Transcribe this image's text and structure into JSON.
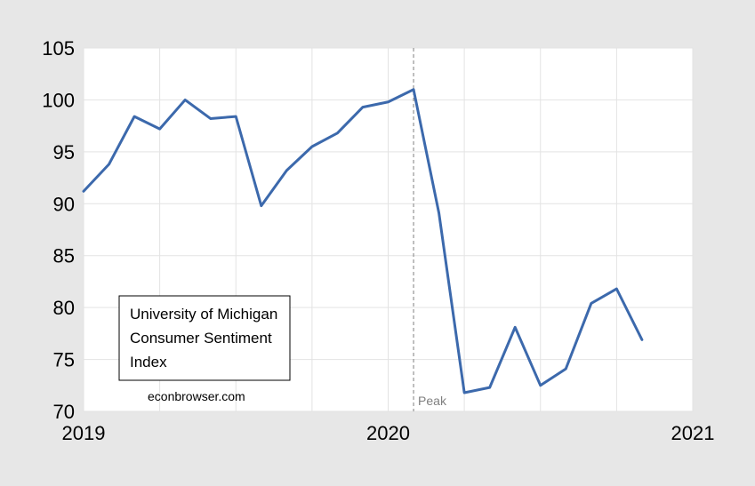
{
  "chart_data": {
    "type": "line",
    "title": "",
    "xlabel": "",
    "ylabel": "",
    "ylim": [
      70,
      105
    ],
    "xlim": [
      2019.0,
      2021.0
    ],
    "x_ticks": [
      "2019",
      "2020",
      "2021"
    ],
    "y_ticks": [
      "70",
      "75",
      "80",
      "85",
      "90",
      "95",
      "100",
      "105"
    ],
    "grid": true,
    "legend_text": [
      "University of Michigan",
      "Consumer Sentiment",
      "Index"
    ],
    "source_note": "econbrowser.com",
    "annotation": {
      "label": "Peak",
      "x": "2020-02"
    },
    "series": [
      {
        "color": "#3c69ac",
        "points": [
          {
            "x": "2019-01",
            "y": 91.2
          },
          {
            "x": "2019-02",
            "y": 93.8
          },
          {
            "x": "2019-03",
            "y": 98.4
          },
          {
            "x": "2019-04",
            "y": 97.2
          },
          {
            "x": "2019-05",
            "y": 100.0
          },
          {
            "x": "2019-06",
            "y": 98.2
          },
          {
            "x": "2019-07",
            "y": 98.4
          },
          {
            "x": "2019-08",
            "y": 89.8
          },
          {
            "x": "2019-09",
            "y": 93.2
          },
          {
            "x": "2019-10",
            "y": 95.5
          },
          {
            "x": "2019-11",
            "y": 96.8
          },
          {
            "x": "2019-12",
            "y": 99.3
          },
          {
            "x": "2020-01",
            "y": 99.8
          },
          {
            "x": "2020-02",
            "y": 101.0
          },
          {
            "x": "2020-03",
            "y": 89.1
          },
          {
            "x": "2020-04",
            "y": 71.8
          },
          {
            "x": "2020-05",
            "y": 72.3
          },
          {
            "x": "2020-06",
            "y": 78.1
          },
          {
            "x": "2020-07",
            "y": 72.5
          },
          {
            "x": "2020-08",
            "y": 74.1
          },
          {
            "x": "2020-09",
            "y": 80.4
          },
          {
            "x": "2020-10",
            "y": 81.8
          },
          {
            "x": "2020-11",
            "y": 76.9
          }
        ]
      }
    ]
  }
}
